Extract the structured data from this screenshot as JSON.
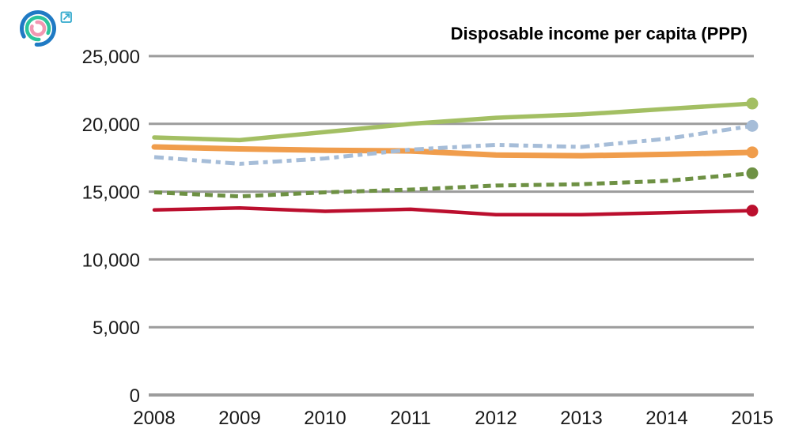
{
  "logo": {
    "outer_arc_color": "#1f7ac4",
    "middle_arc_color": "#2bc49c",
    "inner_arc_color": "#f297b2",
    "link_icon_color": "#33aacd"
  },
  "chart_data": {
    "type": "line",
    "title": "Disposable income per capita (PPP)",
    "xlabel": "",
    "ylabel": "",
    "x_labels": [
      "2008",
      "2009",
      "2010",
      "2011",
      "2012",
      "2013",
      "2014",
      "2015"
    ],
    "ylim": [
      0,
      25000
    ],
    "yticks": [
      0,
      5000,
      10000,
      15000,
      20000,
      25000
    ],
    "ytick_labels": [
      "0",
      "5,000",
      "10,000",
      "15,000",
      "20,000",
      "25,000"
    ],
    "grid": "horizontal-only",
    "grid_color": "#9c9c9c",
    "legend": "none",
    "end_markers": true,
    "series": [
      {
        "name": "light-green-solid",
        "color": "#a3bf63",
        "dash": "",
        "width": 5.5,
        "values": [
          19000,
          18800,
          19400,
          20000,
          20450,
          20700,
          21100,
          21500
        ]
      },
      {
        "name": "light-blue-dash-dot",
        "color": "#a6bdd8",
        "dash": "12 6 6 6",
        "width": 5,
        "values": [
          17550,
          17050,
          17450,
          18100,
          18450,
          18300,
          18900,
          19850
        ]
      },
      {
        "name": "orange-solid",
        "color": "#f09d4c",
        "dash": "",
        "width": 7,
        "values": [
          18300,
          18150,
          18050,
          18000,
          17700,
          17650,
          17750,
          17900
        ]
      },
      {
        "name": "dark-green-dashed",
        "color": "#6e9144",
        "dash": "10 6",
        "width": 5,
        "values": [
          14950,
          14650,
          14950,
          15150,
          15450,
          15550,
          15800,
          16350
        ]
      },
      {
        "name": "dark-red-solid",
        "color": "#bb0f2e",
        "dash": "",
        "width": 4.5,
        "values": [
          13650,
          13800,
          13550,
          13700,
          13300,
          13300,
          13450,
          13600
        ]
      }
    ]
  }
}
